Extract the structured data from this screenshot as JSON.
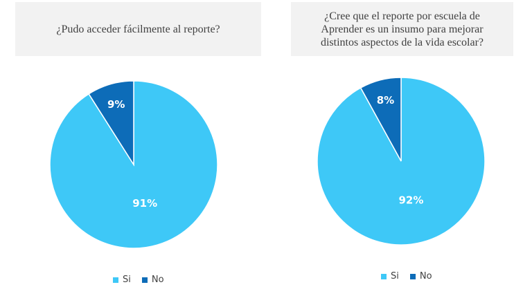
{
  "colors": {
    "si": "#3ec8f7",
    "no": "#0d6cb8",
    "title_bg": "#f2f2f2"
  },
  "chart_data": [
    {
      "type": "pie",
      "title": "¿Pudo acceder fácilmente al reporte?",
      "slices": [
        {
          "label": "Si",
          "value": 91,
          "display": "91%"
        },
        {
          "label": "No",
          "value": 9,
          "display": "9%"
        }
      ],
      "legend": [
        "Si",
        "No"
      ],
      "legend_position": "bottom"
    },
    {
      "type": "pie",
      "title": "¿Cree que el reporte por escuela de\nAprender es un insumo para mejorar\ndistintos aspectos de la vida escolar?",
      "slices": [
        {
          "label": "Si",
          "value": 92,
          "display": "92%"
        },
        {
          "label": "No",
          "value": 8,
          "display": "8%"
        }
      ],
      "legend": [
        "Si",
        "No"
      ],
      "legend_position": "bottom"
    }
  ]
}
